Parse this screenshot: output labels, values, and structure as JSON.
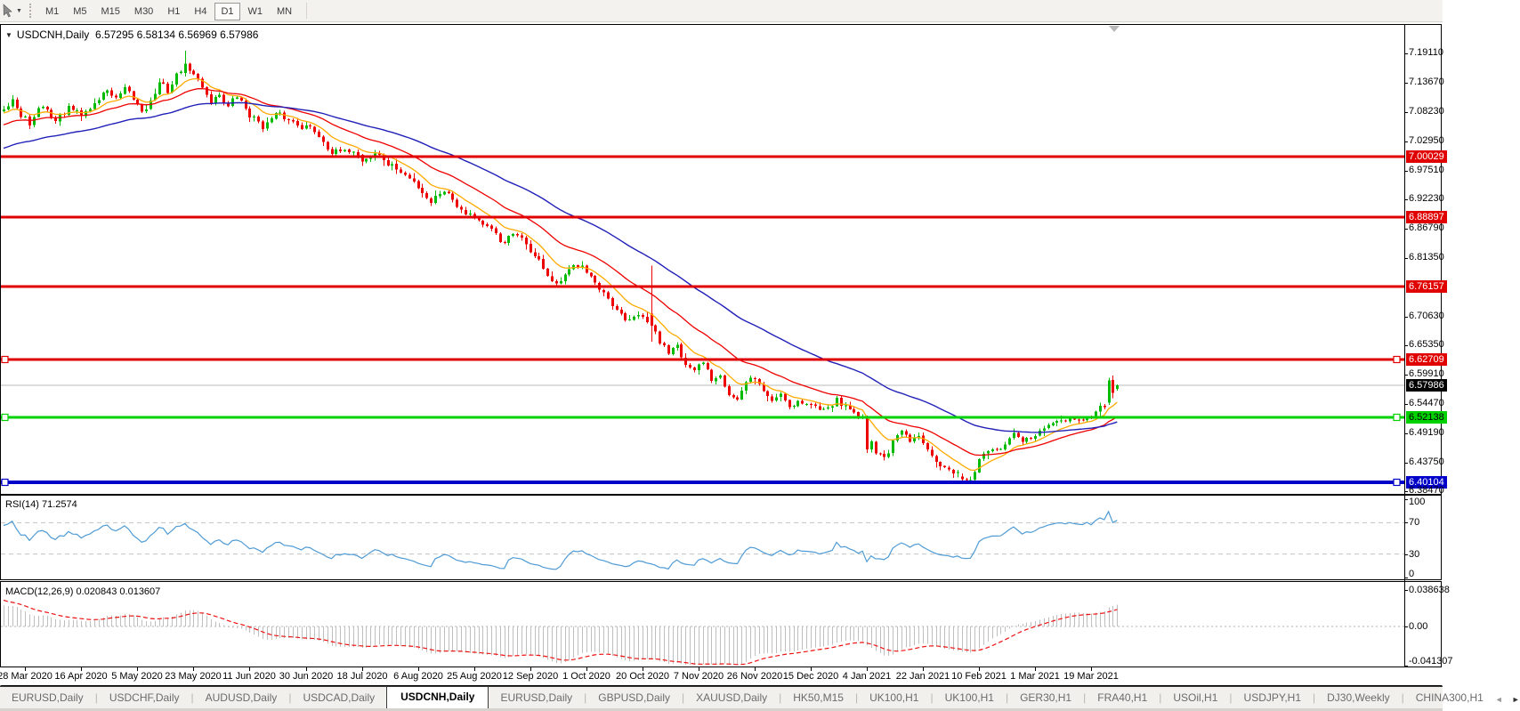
{
  "toolbar": {
    "timeframes": [
      {
        "label": "M1",
        "active": false
      },
      {
        "label": "M5",
        "active": false
      },
      {
        "label": "M15",
        "active": false
      },
      {
        "label": "M30",
        "active": false
      },
      {
        "label": "H1",
        "active": false
      },
      {
        "label": "H4",
        "active": false
      },
      {
        "label": "D1",
        "active": true
      },
      {
        "label": "W1",
        "active": false
      },
      {
        "label": "MN",
        "active": false
      }
    ]
  },
  "chart": {
    "title_symbol": "USDCNH,Daily",
    "title_ohlc": "6.57295 6.58134 6.56969 6.57986",
    "expander_glyph": "▼"
  },
  "chart_data": {
    "type": "candlestick",
    "symbol": "USDCNH",
    "timeframe": "Daily",
    "current_bar": {
      "open": 6.57295,
      "high": 6.58134,
      "low": 6.56969,
      "close": 6.57986
    },
    "ylim": [
      6.3816,
      7.245
    ],
    "bars_visible": 259,
    "candle_up_color": "#00bb00",
    "candle_down_color": "#ee0000",
    "y_ticks": [
      {
        "p": 7.1911,
        "t": "7.19110"
      },
      {
        "p": 7.1367,
        "t": "7.13670"
      },
      {
        "p": 7.0823,
        "t": "7.08230"
      },
      {
        "p": 7.0295,
        "t": "7.02950"
      },
      {
        "p": 6.9751,
        "t": "6.97510"
      },
      {
        "p": 6.9223,
        "t": "6.92230"
      },
      {
        "p": 6.8679,
        "t": "6.86790"
      },
      {
        "p": 6.8135,
        "t": "6.81350"
      },
      {
        "p": 6.7063,
        "t": "6.70630"
      },
      {
        "p": 6.6535,
        "t": "6.65350"
      },
      {
        "p": 6.5991,
        "t": "6.59910"
      },
      {
        "p": 6.5447,
        "t": "6.54470"
      },
      {
        "p": 6.4919,
        "t": "6.49190"
      },
      {
        "p": 6.4375,
        "t": "6.43750"
      },
      {
        "p": 6.3847,
        "t": "6.38470"
      }
    ],
    "x_labels": [
      "28 Mar 2020",
      "16 Apr 2020",
      "5 May 2020",
      "23 May 2020",
      "11 Jun 2020",
      "30 Jun 2020",
      "18 Jul 2020",
      "6 Aug 2020",
      "25 Aug 2020",
      "12 Sep 2020",
      "1 Oct 2020",
      "20 Oct 2020",
      "7 Nov 2020",
      "26 Nov 2020",
      "15 Dec 2020",
      "4 Jan 2021",
      "22 Jan 2021",
      "10 Feb 2021",
      "1 Mar 2021",
      "19 Mar 2021"
    ],
    "levels": [
      {
        "price": 7.00029,
        "label": "7.00029",
        "color": "#e00000",
        "text_color": "#ffffff",
        "thickness": 3,
        "selected": false
      },
      {
        "price": 6.88897,
        "label": "6.88897",
        "color": "#e00000",
        "text_color": "#ffffff",
        "thickness": 3,
        "selected": false
      },
      {
        "price": 6.76157,
        "label": "6.76157",
        "color": "#e00000",
        "text_color": "#ffffff",
        "thickness": 3,
        "selected": false
      },
      {
        "price": 6.62709,
        "label": "6.62709",
        "color": "#e00000",
        "text_color": "#ffffff",
        "thickness": 3,
        "selected": true
      },
      {
        "price": 6.52138,
        "label": "6.52138",
        "color": "#00d200",
        "text_color": "#000000",
        "thickness": 3,
        "selected": true
      },
      {
        "price": 6.40104,
        "label": "6.40104",
        "color": "#0000c8",
        "text_color": "#ffffff",
        "thickness": 4,
        "selected": true
      }
    ],
    "current_price": {
      "price": 6.57986,
      "label": "6.57986",
      "line_color": "#b8b8b8",
      "bg": "#000000",
      "text_color": "#ffffff"
    },
    "moving_averages": [
      {
        "period": 10,
        "color": "#ffaa00",
        "width": 1.3
      },
      {
        "period": 25,
        "color": "#ee0000",
        "width": 1.3
      },
      {
        "period": 55,
        "color": "#2121b8",
        "width": 1.4
      }
    ],
    "price_anchors": [
      [
        -60,
        6.92
      ],
      [
        -50,
        6.97
      ],
      [
        -40,
        6.87
      ],
      [
        -30,
        6.94
      ],
      [
        -20,
        7.05
      ],
      [
        -12,
        7.12
      ],
      [
        -6,
        7.06
      ],
      [
        -1,
        7.085
      ],
      [
        0,
        7.095
      ],
      [
        2,
        7.115
      ],
      [
        4,
        7.075
      ],
      [
        6,
        7.062
      ],
      [
        9,
        7.092
      ],
      [
        12,
        7.068
      ],
      [
        15,
        7.088
      ],
      [
        18,
        7.072
      ],
      [
        21,
        7.098
      ],
      [
        24,
        7.125
      ],
      [
        26,
        7.105
      ],
      [
        28,
        7.118
      ],
      [
        30,
        7.1
      ],
      [
        32,
        7.085
      ],
      [
        34,
        7.105
      ],
      [
        36,
        7.135
      ],
      [
        38,
        7.12
      ],
      [
        40,
        7.15
      ],
      [
        42,
        7.172
      ],
      [
        44,
        7.15
      ],
      [
        46,
        7.13
      ],
      [
        48,
        7.105
      ],
      [
        50,
        7.118
      ],
      [
        52,
        7.095
      ],
      [
        54,
        7.11
      ],
      [
        57,
        7.078
      ],
      [
        60,
        7.06
      ],
      [
        63,
        7.074
      ],
      [
        66,
        7.066
      ],
      [
        70,
        7.06
      ],
      [
        73,
        7.042
      ],
      [
        76,
        7.016
      ],
      [
        79,
        7.004
      ],
      [
        81,
        7.015
      ],
      [
        83,
        6.996
      ],
      [
        86,
        7.01
      ],
      [
        89,
        6.988
      ],
      [
        93,
        6.966
      ],
      [
        96,
        6.946
      ],
      [
        99,
        6.922
      ],
      [
        102,
        6.944
      ],
      [
        105,
        6.916
      ],
      [
        109,
        6.896
      ],
      [
        112,
        6.872
      ],
      [
        115,
        6.84
      ],
      [
        118,
        6.856
      ],
      [
        122,
        6.828
      ],
      [
        125,
        6.796
      ],
      [
        128,
        6.76
      ],
      [
        131,
        6.784
      ],
      [
        134,
        6.808
      ],
      [
        136,
        6.786
      ],
      [
        138,
        6.752
      ],
      [
        141,
        6.718
      ],
      [
        144,
        6.692
      ],
      [
        146,
        6.706
      ],
      [
        148,
        6.7
      ],
      [
        150,
        6.69
      ],
      [
        152,
        6.656
      ],
      [
        154,
        6.64
      ],
      [
        156,
        6.664
      ],
      [
        158,
        6.622
      ],
      [
        160,
        6.6
      ],
      [
        162,
        6.616
      ],
      [
        164,
        6.59
      ],
      [
        166,
        6.606
      ],
      [
        168,
        6.572
      ],
      [
        170,
        6.556
      ],
      [
        172,
        6.58
      ],
      [
        174,
        6.592
      ],
      [
        176,
        6.568
      ],
      [
        178,
        6.552
      ],
      [
        180,
        6.566
      ],
      [
        182,
        6.545
      ],
      [
        184,
        6.556
      ],
      [
        187,
        6.545
      ],
      [
        189,
        6.535
      ],
      [
        191,
        6.55
      ],
      [
        193,
        6.556
      ],
      [
        195,
        6.541
      ],
      [
        197,
        6.53
      ],
      [
        199,
        6.522
      ],
      [
        200,
        6.502
      ],
      [
        202,
        6.462
      ],
      [
        204,
        6.447
      ],
      [
        206,
        6.474
      ],
      [
        208,
        6.49
      ],
      [
        210,
        6.471
      ],
      [
        212,
        6.482
      ],
      [
        214,
        6.47
      ],
      [
        216,
        6.452
      ],
      [
        218,
        6.432
      ],
      [
        220,
        6.416
      ],
      [
        222,
        6.407
      ],
      [
        224,
        6.41
      ],
      [
        226,
        6.442
      ],
      [
        228,
        6.462
      ],
      [
        230,
        6.452
      ],
      [
        232,
        6.47
      ],
      [
        234,
        6.482
      ],
      [
        236,
        6.47
      ],
      [
        238,
        6.48
      ],
      [
        240,
        6.492
      ],
      [
        242,
        6.502
      ],
      [
        244,
        6.512
      ],
      [
        246,
        6.501
      ],
      [
        248,
        6.514
      ],
      [
        250,
        6.511
      ],
      [
        252,
        6.516
      ],
      [
        253,
        6.524
      ],
      [
        254,
        6.541
      ],
      [
        255,
        6.533
      ],
      [
        256,
        6.589
      ],
      [
        257,
        6.566
      ],
      [
        258,
        6.57986
      ]
    ],
    "forced_bars": {
      "42": {
        "o": 7.155,
        "h": 7.196,
        "l": 7.148,
        "c": 7.172
      },
      "150": {
        "o": 6.712,
        "h": 6.8,
        "l": 6.66,
        "c": 6.69
      },
      "200": {
        "o": 6.52,
        "h": 6.524,
        "l": 6.455,
        "c": 6.462
      },
      "222": {
        "o": 6.412,
        "h": 6.418,
        "l": 6.401,
        "c": 6.407
      },
      "256": {
        "o": 6.548,
        "h": 6.594,
        "l": 6.544,
        "c": 6.589
      },
      "257": {
        "o": 6.59,
        "h": 6.598,
        "l": 6.556,
        "c": 6.566
      },
      "258": {
        "o": 6.57295,
        "h": 6.58134,
        "l": 6.56969,
        "c": 6.57986
      }
    },
    "rsi": {
      "label": "RSI(14) 71.2574",
      "period": 14,
      "current": 71.2574,
      "line_color": "#4f9bd5",
      "levels": [
        30,
        70
      ],
      "scale": [
        0,
        100
      ],
      "scale_labels": [
        {
          "v": 100,
          "t": "100"
        },
        {
          "v": 70,
          "t": "70"
        },
        {
          "v": 30,
          "t": "30"
        },
        {
          "v": 0,
          "t": "0"
        }
      ]
    },
    "macd": {
      "label": "MACD(12,26,9) 0.020843 0.013607",
      "fast": 12,
      "slow": 26,
      "signal": 9,
      "macd_value": 0.020843,
      "signal_value": 0.013607,
      "hist_color": "#bfbfbf",
      "signal_color": "#ee1111",
      "scale_labels": [
        {
          "v": 0.038638,
          "t": "0.038638"
        },
        {
          "v": 0,
          "t": "0.00"
        },
        {
          "v": -0.041307,
          "t": "-0.041307"
        }
      ]
    }
  },
  "tabs": {
    "items": [
      {
        "label": "EURUSD,Daily",
        "active": false
      },
      {
        "label": "USDCHF,Daily",
        "active": false
      },
      {
        "label": "AUDUSD,Daily",
        "active": false
      },
      {
        "label": "USDCAD,Daily",
        "active": false
      },
      {
        "label": "USDCNH,Daily",
        "active": true
      },
      {
        "label": "EURUSD,Daily",
        "active": false
      },
      {
        "label": "GBPUSD,Daily",
        "active": false
      },
      {
        "label": "XAUUSD,Daily",
        "active": false
      },
      {
        "label": "HK50,M15",
        "active": false
      },
      {
        "label": "UK100,H1",
        "active": false
      },
      {
        "label": "UK100,H1",
        "active": false
      },
      {
        "label": "GER30,H1",
        "active": false
      },
      {
        "label": "FRA40,H1",
        "active": false
      },
      {
        "label": "USOil,H1",
        "active": false
      },
      {
        "label": "USDJPY,H1",
        "active": false
      },
      {
        "label": "DJ30,Weekly",
        "active": false
      },
      {
        "label": "CHINA300,H1",
        "active": false
      }
    ],
    "scroll_left_glyph": "◄",
    "scroll_right_glyph": "►"
  }
}
